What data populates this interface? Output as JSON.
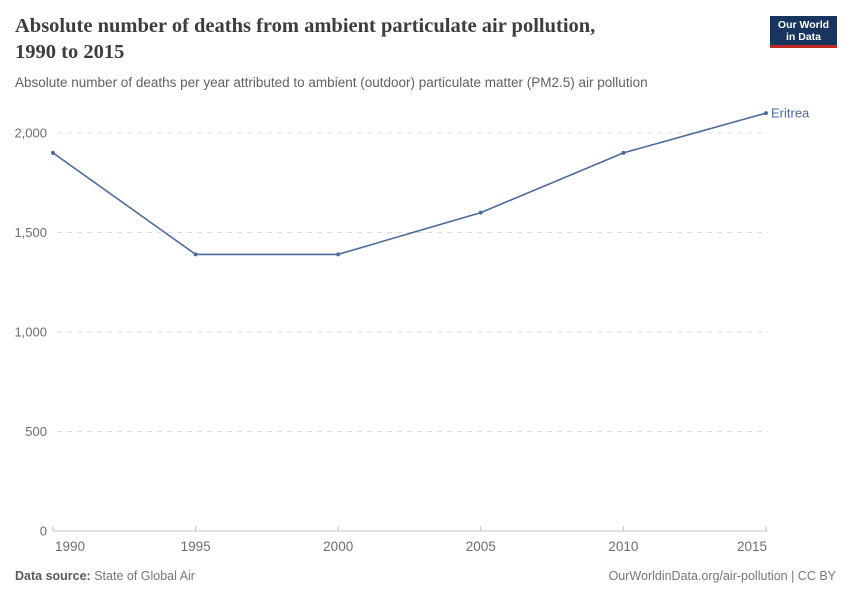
{
  "header": {
    "title": "Absolute number of deaths from ambient particulate air pollution,\n1990 to 2015",
    "subtitle": "Absolute number of deaths per year attributed to ambient (outdoor) particulate matter (PM2.5) air pollution"
  },
  "logo": {
    "line1": "Our World",
    "line2": "in Data",
    "bg_color": "#18355f",
    "bar_color": "#bf2825"
  },
  "footer": {
    "datasource_label": "Data source:",
    "datasource_value": "State of Global Air",
    "credit": "OurWorldinData.org/air-pollution | CC BY"
  },
  "chart_data": {
    "type": "line",
    "title": "Absolute number of deaths from ambient particulate air pollution, 1990 to 2015",
    "subtitle": "Absolute number of deaths per year attributed to ambient (outdoor) particulate matter (PM2.5) air pollution",
    "entity": "Eritrea",
    "x": [
      1990,
      1995,
      2000,
      2005,
      2010,
      2015
    ],
    "x_tick_labels": [
      "1990",
      "1995",
      "2000",
      "2005",
      "2010",
      "2015"
    ],
    "values": [
      1900,
      1390,
      1390,
      1600,
      1900,
      2100
    ],
    "y_ticks": [
      {
        "value": 0,
        "label": "0"
      },
      {
        "value": 500,
        "label": "500"
      },
      {
        "value": 1000,
        "label": "1,000"
      },
      {
        "value": 1500,
        "label": "1,500"
      },
      {
        "value": 2000,
        "label": "2,000"
      }
    ],
    "ylim": [
      0,
      2100
    ],
    "xlabel": "",
    "ylabel": "",
    "grid": "horizontal-dashed",
    "legend_position": "end-of-line-label",
    "line_color": "#4C6A9C",
    "grid_color": "#dcdcdc",
    "axis_color": "#c4c4c4",
    "tick_label_color": "#6e6e6e"
  }
}
